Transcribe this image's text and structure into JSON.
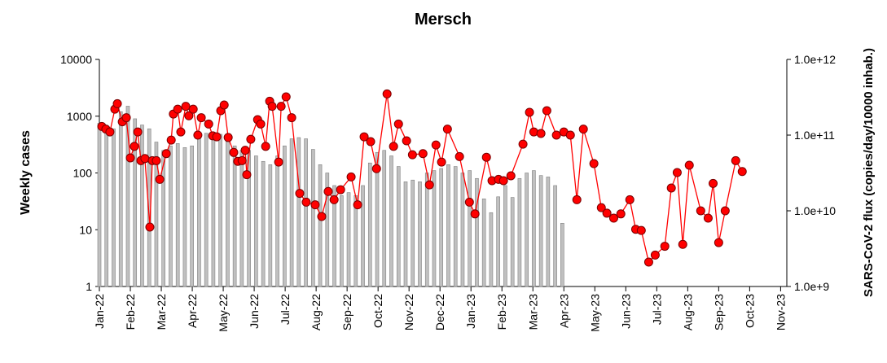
{
  "chart_data": {
    "type": "bar_line",
    "title": "Mersch",
    "ylabel": "Weekly cases",
    "y2label": "SARS-CoV-2 flux (copies/day/10000 inhab.)",
    "xlim": [
      0,
      22.2
    ],
    "xticks": [
      {
        "value": 0,
        "label": "Jan-22"
      },
      {
        "value": 1,
        "label": "Feb-22"
      },
      {
        "value": 2,
        "label": "Mar-22"
      },
      {
        "value": 3,
        "label": "Apr-22"
      },
      {
        "value": 4,
        "label": "May-22"
      },
      {
        "value": 5,
        "label": "Jun-22"
      },
      {
        "value": 6,
        "label": "Jul-22"
      },
      {
        "value": 7,
        "label": "Aug-22"
      },
      {
        "value": 8,
        "label": "Sep-22"
      },
      {
        "value": 9,
        "label": "Oct-22"
      },
      {
        "value": 10,
        "label": "Nov-22"
      },
      {
        "value": 11,
        "label": "Dec-22"
      },
      {
        "value": 12,
        "label": "Jan-23"
      },
      {
        "value": 13,
        "label": "Feb-23"
      },
      {
        "value": 14,
        "label": "Mar-23"
      },
      {
        "value": 15,
        "label": "Apr-23"
      },
      {
        "value": 16,
        "label": "May-23"
      },
      {
        "value": 17,
        "label": "Jun-23"
      },
      {
        "value": 18,
        "label": "Jul-23"
      },
      {
        "value": 19,
        "label": "Aug-23"
      },
      {
        "value": 20,
        "label": "Sep-23"
      },
      {
        "value": 21,
        "label": "Oct-23"
      },
      {
        "value": 22,
        "label": "Nov-23"
      }
    ],
    "ylim": [
      1,
      10000
    ],
    "yticks": [
      1,
      10,
      100,
      1000,
      10000
    ],
    "ylog": true,
    "y2lim": [
      1000000000.0,
      1000000000000.0
    ],
    "y2ticks": [
      {
        "value": 1000000000.0,
        "label": "1.0e+9"
      },
      {
        "value": 10000000000.0,
        "label": "1.0e+10"
      },
      {
        "value": 100000000000.0,
        "label": "1.0e+11"
      },
      {
        "value": 1000000000000.0,
        "label": "1.0e+12"
      }
    ],
    "y2log": true,
    "series": [
      {
        "type": "bar",
        "color": "#c0c0c0",
        "x": [
          0,
          0.23,
          0.46,
          0.69,
          0.92,
          1.15,
          1.38,
          1.61,
          1.84,
          2.07,
          2.3,
          2.53,
          2.76,
          2.99,
          3.22,
          3.45,
          3.68,
          3.91,
          4.14,
          4.37,
          4.6,
          4.83,
          5.06,
          5.29,
          5.52,
          5.75,
          5.98,
          6.21,
          6.44,
          6.67,
          6.9,
          7.13,
          7.36,
          7.59,
          7.82,
          8.05,
          8.28,
          8.51,
          8.74,
          8.97,
          9.2,
          9.43,
          9.66,
          9.89,
          10.12,
          10.35,
          10.58,
          10.81,
          11.04,
          11.27,
          11.5,
          11.73,
          11.96,
          12.19,
          12.42,
          12.65,
          12.88,
          13.11,
          13.34,
          13.57,
          13.8,
          14.03,
          14.26,
          14.49,
          14.72,
          14.95
        ],
        "values": [
          750,
          650,
          600,
          1200,
          1500,
          900,
          700,
          600,
          350,
          250,
          300,
          330,
          280,
          300,
          450,
          500,
          520,
          480,
          450,
          300,
          250,
          250,
          200,
          160,
          140,
          200,
          300,
          400,
          420,
          400,
          260,
          140,
          100,
          60,
          40,
          45,
          40,
          60,
          150,
          230,
          250,
          200,
          130,
          70,
          75,
          70,
          100,
          110,
          120,
          140,
          130,
          100,
          110,
          80,
          35,
          20,
          38,
          60,
          37,
          80,
          100,
          110,
          90,
          85,
          60,
          13
        ]
      },
      {
        "type": "line",
        "color": "#ff0000",
        "axis": "y2",
        "x": [
          0.08,
          0.21,
          0.34,
          0.5,
          0.58,
          0.74,
          0.87,
          1.0,
          1.13,
          1.24,
          1.34,
          1.47,
          1.63,
          1.71,
          1.84,
          1.95,
          2.16,
          2.32,
          2.39,
          2.53,
          2.63,
          2.79,
          2.89,
          3.03,
          3.18,
          3.29,
          3.53,
          3.66,
          3.79,
          3.92,
          4.03,
          4.16,
          4.34,
          4.47,
          4.61,
          4.71,
          4.76,
          4.89,
          5.11,
          5.21,
          5.37,
          5.5,
          5.58,
          5.79,
          5.87,
          6.03,
          6.21,
          6.47,
          6.68,
          6.97,
          7.18,
          7.39,
          7.58,
          7.79,
          8.13,
          8.34,
          8.55,
          8.76,
          8.95,
          9.29,
          9.5,
          9.66,
          9.92,
          10.11,
          10.45,
          10.66,
          10.87,
          11.05,
          11.24,
          11.63,
          11.95,
          12.13,
          12.5,
          12.68,
          12.89,
          13.05,
          13.29,
          13.68,
          13.89,
          14.03,
          14.26,
          14.45,
          14.76,
          15.0,
          15.21,
          15.42,
          15.63,
          15.97,
          16.21,
          16.39,
          16.61,
          16.84,
          17.13,
          17.32,
          17.5,
          17.74,
          17.95,
          18.26,
          18.47,
          18.66,
          18.84,
          19.05,
          19.42,
          19.66,
          19.82,
          20.0,
          20.21,
          20.55,
          20.76
        ],
        "values": [
          130000000000.0,
          120000000000.0,
          110000000000.0,
          220000000000.0,
          260000000000.0,
          150000000000.0,
          170000000000.0,
          50000000000.0,
          71000000000.0,
          110000000000.0,
          46000000000.0,
          49000000000.0,
          6100000000.0,
          46000000000.0,
          46000000000.0,
          26000000000.0,
          57000000000.0,
          86000000000.0,
          190000000000.0,
          220000000000.0,
          110000000000.0,
          240000000000.0,
          180000000000.0,
          220000000000.0,
          100000000000.0,
          170000000000.0,
          140000000000.0,
          98000000000.0,
          95000000000.0,
          210000000000.0,
          250000000000.0,
          93000000000.0,
          59000000000.0,
          45000000000.0,
          46000000000.0,
          63000000000.0,
          30000000000.0,
          88000000000.0,
          160000000000.0,
          140000000000.0,
          71000000000.0,
          280000000000.0,
          240000000000.0,
          44000000000.0,
          240000000000.0,
          320000000000.0,
          170000000000.0,
          17000000000.0,
          13000000000.0,
          12000000000.0,
          8400000000.0,
          18000000000.0,
          14000000000.0,
          19000000000.0,
          28000000000.0,
          12000000000.0,
          95000000000.0,
          82000000000.0,
          36000000000.0,
          350000000000.0,
          71000000000.0,
          140000000000.0,
          84000000000.0,
          55000000000.0,
          57000000000.0,
          22000000000.0,
          74000000000.0,
          44000000000.0,
          120000000000.0,
          52000000000.0,
          13000000000.0,
          9100000000.0,
          51000000000.0,
          25000000000.0,
          26000000000.0,
          25000000000.0,
          29000000000.0,
          76000000000.0,
          200000000000.0,
          110000000000.0,
          105000000000.0,
          210000000000.0,
          100000000000.0,
          110000000000.0,
          100000000000.0,
          14000000000.0,
          120000000000.0,
          42000000000.0,
          11000000000.0,
          9300000000.0,
          8000000000.0,
          9100000000.0,
          14000000000.0,
          5700000000.0,
          5500000000.0,
          2100000000.0,
          2600000000.0,
          3400000000.0,
          20000000000.0,
          32000000000.0,
          3600000000.0,
          40000000000.0,
          10000000000.0,
          8000000000.0,
          23000000000.0,
          3800000000.0,
          10000000000.0,
          46000000000.0,
          33000000000.0
        ]
      }
    ]
  }
}
